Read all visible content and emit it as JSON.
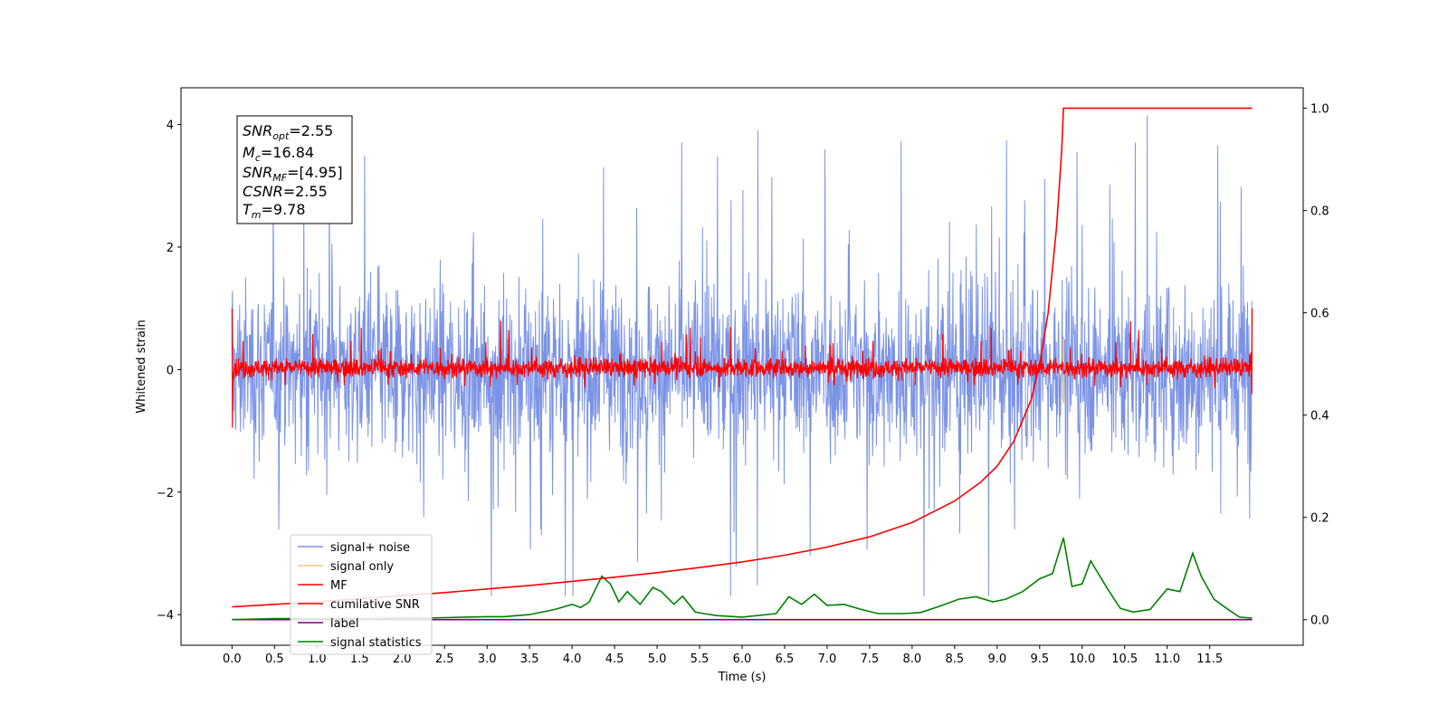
{
  "chart_data": {
    "type": "line",
    "xlabel": "Time (s)",
    "ylabel": "Whitened strain",
    "x_range": [
      -0.6,
      12.6
    ],
    "ylim": [
      -4.5,
      4.6
    ],
    "y2lim": [
      -0.05,
      1.04
    ],
    "x_ticks": [
      "0.0",
      "0.5",
      "1.0",
      "1.5",
      "2.0",
      "2.5",
      "3.0",
      "3.5",
      "4.0",
      "4.5",
      "5.0",
      "5.5",
      "6.0",
      "6.5",
      "7.0",
      "7.5",
      "8.0",
      "8.5",
      "9.0",
      "9.5",
      "10.0",
      "10.5",
      "11.0",
      "11.5"
    ],
    "y_ticks": [
      "4",
      "2",
      "0",
      "−2",
      "−4"
    ],
    "y2_ticks": [
      "1.0",
      "0.8",
      "0.6",
      "0.4",
      "0.2",
      "0.0"
    ],
    "grid": false,
    "legend_position": "lower-left",
    "info_box": {
      "snr_opt": "2.55",
      "mc": "16.84",
      "snr_mf": "[4.95]",
      "csnr": "2.55",
      "tm": "9.78"
    },
    "series": [
      {
        "name": "signal+ noise",
        "color": "#7b93e6",
        "axis": "left",
        "envelope": {
          "x_range": [
            0.0,
            12.0
          ],
          "typical_band": [
            -1.6,
            1.6
          ],
          "peak_max": 4.15,
          "peak_min": -3.7
        }
      },
      {
        "name": "signal only",
        "color": "#f5c77e",
        "axis": "left",
        "event": {
          "t": 9.78,
          "min": -0.55,
          "max": 0.5
        }
      },
      {
        "name": "MF",
        "color": "#ff0000",
        "axis": "left",
        "envelope": {
          "x_range": [
            0.0,
            12.0
          ],
          "typical_band": [
            -0.3,
            0.4
          ],
          "edge_spike": [
            -0.95,
            1.0
          ]
        }
      },
      {
        "name": "cumilative SNR",
        "color": "#ff0000",
        "axis": "right",
        "x": [
          0.0,
          0.5,
          1.0,
          1.5,
          2.0,
          2.5,
          3.0,
          3.5,
          4.0,
          4.5,
          5.0,
          5.5,
          6.0,
          6.5,
          7.0,
          7.5,
          8.0,
          8.5,
          8.8,
          9.0,
          9.2,
          9.4,
          9.5,
          9.6,
          9.7,
          9.76,
          9.78,
          12.0
        ],
        "values": [
          0.025,
          0.03,
          0.035,
          0.041,
          0.047,
          0.053,
          0.06,
          0.067,
          0.075,
          0.083,
          0.092,
          0.102,
          0.113,
          0.126,
          0.142,
          0.162,
          0.19,
          0.232,
          0.268,
          0.3,
          0.35,
          0.43,
          0.5,
          0.6,
          0.77,
          0.92,
          1.0,
          1.0
        ]
      },
      {
        "name": "label",
        "color": "#800080",
        "axis": "right",
        "x": [
          0.0,
          12.0
        ],
        "values": [
          0.0,
          0.0
        ]
      },
      {
        "name": "signal statistics",
        "color": "#008000",
        "axis": "right",
        "x": [
          0.0,
          0.5,
          1.0,
          1.5,
          2.0,
          2.2,
          2.5,
          3.0,
          3.2,
          3.5,
          3.8,
          4.0,
          4.1,
          4.2,
          4.35,
          4.45,
          4.55,
          4.65,
          4.8,
          4.95,
          5.05,
          5.2,
          5.3,
          5.45,
          5.55,
          5.7,
          6.0,
          6.4,
          6.55,
          6.7,
          6.85,
          7.0,
          7.2,
          7.4,
          7.6,
          7.9,
          8.1,
          8.3,
          8.55,
          8.75,
          8.95,
          9.1,
          9.3,
          9.5,
          9.65,
          9.78,
          9.88,
          10.0,
          10.1,
          10.3,
          10.45,
          10.6,
          10.8,
          11.0,
          11.15,
          11.3,
          11.4,
          11.55,
          11.7,
          11.85,
          12.0
        ],
        "values": [
          0.0,
          0.002,
          0.002,
          0.002,
          0.003,
          0.003,
          0.004,
          0.006,
          0.006,
          0.01,
          0.02,
          0.03,
          0.024,
          0.034,
          0.085,
          0.07,
          0.035,
          0.055,
          0.03,
          0.063,
          0.055,
          0.03,
          0.046,
          0.015,
          0.012,
          0.008,
          0.005,
          0.012,
          0.045,
          0.03,
          0.05,
          0.028,
          0.03,
          0.02,
          0.012,
          0.012,
          0.014,
          0.025,
          0.04,
          0.045,
          0.035,
          0.04,
          0.055,
          0.08,
          0.09,
          0.16,
          0.065,
          0.07,
          0.115,
          0.06,
          0.022,
          0.015,
          0.02,
          0.06,
          0.055,
          0.13,
          0.085,
          0.04,
          0.022,
          0.005,
          0.003
        ]
      }
    ]
  }
}
